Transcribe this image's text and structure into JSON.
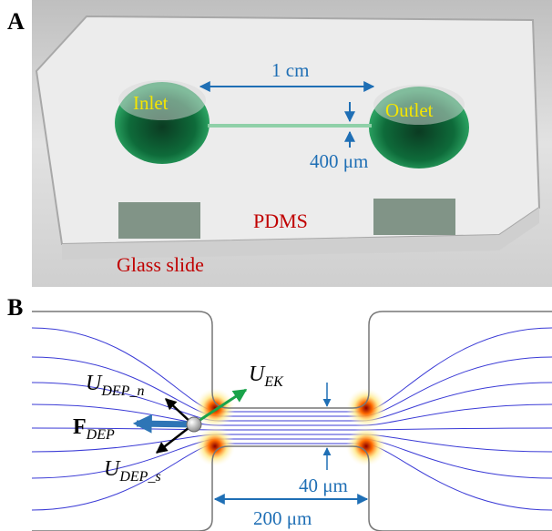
{
  "panel_a": {
    "label": "A",
    "scale_bar": "1 cm",
    "inlet": "Inlet",
    "outlet": "Outlet",
    "channel_width": "400 μm",
    "pdms": "PDMS",
    "glass_slide": "Glass slide"
  },
  "panel_b": {
    "label": "B",
    "u_dep_n": {
      "symbol": "U",
      "subscript": "DEP_n"
    },
    "u_ek": {
      "symbol": "U",
      "subscript": "EK"
    },
    "f_dep": {
      "symbol": "F",
      "subscript": "DEP"
    },
    "u_dep_s": {
      "symbol": "U",
      "subscript": "DEP_s"
    },
    "channel_width": "40 μm",
    "channel_length": "200 μm"
  }
}
